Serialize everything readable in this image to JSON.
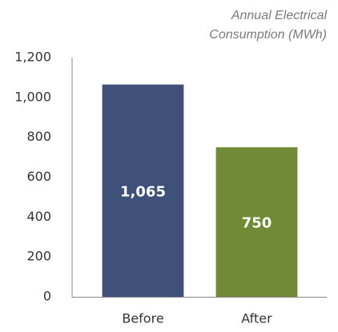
{
  "chart_data": {
    "type": "bar",
    "title": "Annual Electrical Consumption (MWh)",
    "categories": [
      "Before",
      "After"
    ],
    "values": [
      1065,
      750
    ],
    "value_labels": [
      "1,065",
      "750"
    ],
    "colors": [
      "#3f5178",
      "#708a35"
    ],
    "ylim": [
      0,
      1200
    ],
    "yticks": [
      0,
      200,
      400,
      600,
      800,
      {
        "value": 1000,
        "label": "1,000"
      },
      {
        "value": 1200,
        "label": "1,200"
      }
    ],
    "grid": false
  }
}
